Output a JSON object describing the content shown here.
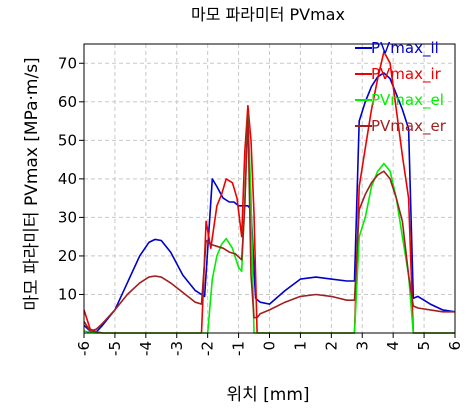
{
  "chart_data": {
    "type": "line",
    "title": "마모 파라미터 PVmax",
    "xlabel": "위치 [mm]",
    "ylabel": "마모 파라미터 PVmax [MPa·m/s]",
    "xlim": [
      -6,
      6
    ],
    "ylim": [
      0,
      75
    ],
    "xticks": [
      -6,
      -5,
      -4,
      -3,
      -2,
      -1,
      0,
      1,
      2,
      3,
      4,
      5,
      6
    ],
    "yticks": [
      10,
      20,
      30,
      40,
      50,
      60,
      70
    ],
    "grid": true,
    "legend_position": "top-right",
    "series": [
      {
        "name": "PVmax_il",
        "color": "#0000cc",
        "x": [
          -6.0,
          -5.8,
          -5.6,
          -5.4,
          -5.0,
          -4.6,
          -4.2,
          -3.9,
          -3.7,
          -3.5,
          -3.2,
          -2.8,
          -2.4,
          -2.1,
          -1.85,
          -1.7,
          -1.5,
          -1.3,
          -1.15,
          -1.0,
          -0.85,
          -0.7,
          -0.6,
          -0.45,
          -0.3,
          0.0,
          0.5,
          1.0,
          1.5,
          2.0,
          2.5,
          2.75,
          2.9,
          3.1,
          3.3,
          3.5,
          3.7,
          3.9,
          4.1,
          4.3,
          4.5,
          4.65,
          4.8,
          5.2,
          5.6,
          6.0
        ],
        "values": [
          2,
          0.5,
          0.3,
          2,
          6,
          13,
          20,
          23.5,
          24.3,
          24,
          21,
          15,
          11,
          9.5,
          40,
          38,
          35,
          34,
          34,
          33,
          33,
          33,
          32,
          9,
          8,
          7.5,
          11,
          14,
          14.5,
          14,
          13.5,
          13.5,
          55,
          60,
          64,
          66.5,
          67.5,
          66,
          62,
          58,
          53,
          9,
          9.5,
          7.5,
          6,
          5.5
        ]
      },
      {
        "name": "PVmax_ir",
        "color": "#ee0000",
        "x": [
          -6.0,
          -5.8,
          -5.6,
          -5.4,
          -5.0,
          -4.6,
          -4.2,
          -3.9,
          -3.7,
          -3.5,
          -3.2,
          -2.8,
          -2.4,
          -2.2,
          -2.05,
          -1.9,
          -1.7,
          -1.55,
          -1.4,
          -1.2,
          -1.05,
          -0.9,
          -0.8,
          -0.7,
          -0.6,
          -0.5,
          -0.4,
          -0.3,
          0.0,
          0.5,
          1.0,
          1.5,
          2.0,
          2.5,
          2.75,
          2.9,
          3.1,
          3.3,
          3.5,
          3.7,
          3.9,
          4.1,
          4.3,
          4.5,
          4.65,
          4.8,
          5.2,
          5.6,
          6.0
        ],
        "values": [
          6,
          1,
          0.3,
          0,
          0,
          0,
          0,
          0,
          0,
          0,
          0,
          0,
          0,
          0,
          29,
          22,
          33,
          36,
          40,
          39,
          35,
          25,
          47,
          59,
          50,
          31,
          0,
          0,
          0,
          0,
          0,
          0,
          0,
          0,
          0,
          38,
          48,
          58,
          66,
          73,
          70,
          58,
          46,
          35,
          0,
          0,
          0,
          0,
          0
        ]
      },
      {
        "name": "PVmax_el",
        "color": "#00ee00",
        "x": [
          -6.0,
          -5.8,
          -5.6,
          -5.4,
          -5.0,
          -4.6,
          -4.2,
          -3.9,
          -3.7,
          -3.5,
          -3.2,
          -2.8,
          -2.4,
          -2.2,
          -2.0,
          -1.85,
          -1.7,
          -1.55,
          -1.4,
          -1.2,
          -1.0,
          -0.9,
          -0.8,
          -0.7,
          -0.6,
          -0.5,
          -0.4,
          -0.3,
          0.0,
          0.5,
          1.0,
          1.5,
          2.0,
          2.5,
          2.75,
          2.9,
          3.1,
          3.3,
          3.5,
          3.7,
          3.9,
          4.1,
          4.3,
          4.5,
          4.65,
          4.8,
          5.2,
          5.6,
          6.0
        ],
        "values": [
          0.5,
          0.2,
          0,
          0,
          0,
          0,
          0,
          0,
          0,
          0,
          0,
          0,
          0,
          0,
          0,
          14,
          20,
          23,
          24.5,
          22,
          17,
          16,
          34,
          57,
          35,
          0,
          0,
          0,
          0,
          0,
          0,
          0,
          0,
          0,
          0,
          25,
          30,
          38,
          42,
          44,
          42,
          35,
          25,
          15,
          0,
          0,
          0,
          0,
          0
        ]
      },
      {
        "name": "PVmax_er",
        "color": "#a02020",
        "x": [
          -6.0,
          -5.8,
          -5.6,
          -5.4,
          -5.0,
          -4.6,
          -4.2,
          -3.9,
          -3.7,
          -3.5,
          -3.2,
          -2.8,
          -2.4,
          -2.2,
          -2.05,
          -1.9,
          -1.7,
          -1.5,
          -1.3,
          -1.1,
          -0.9,
          -0.8,
          -0.7,
          -0.6,
          -0.5,
          -0.4,
          -0.3,
          0.0,
          0.5,
          1.0,
          1.5,
          2.0,
          2.5,
          2.75,
          2.9,
          3.1,
          3.3,
          3.5,
          3.7,
          3.9,
          4.1,
          4.3,
          4.5,
          4.65,
          4.8,
          5.2,
          5.6,
          6.0
        ],
        "values": [
          3,
          0.5,
          1,
          2.5,
          6,
          10,
          13,
          14.5,
          14.8,
          14.5,
          13,
          10.5,
          8,
          7.5,
          24,
          23,
          22.5,
          22,
          21,
          20.5,
          19,
          33,
          57,
          15,
          4,
          4,
          5,
          6,
          8,
          9.5,
          10,
          9.5,
          8.5,
          8.5,
          32,
          36,
          39,
          41,
          42,
          40,
          35,
          29,
          15,
          7,
          6.5,
          6,
          5.5,
          5.5
        ]
      }
    ]
  }
}
